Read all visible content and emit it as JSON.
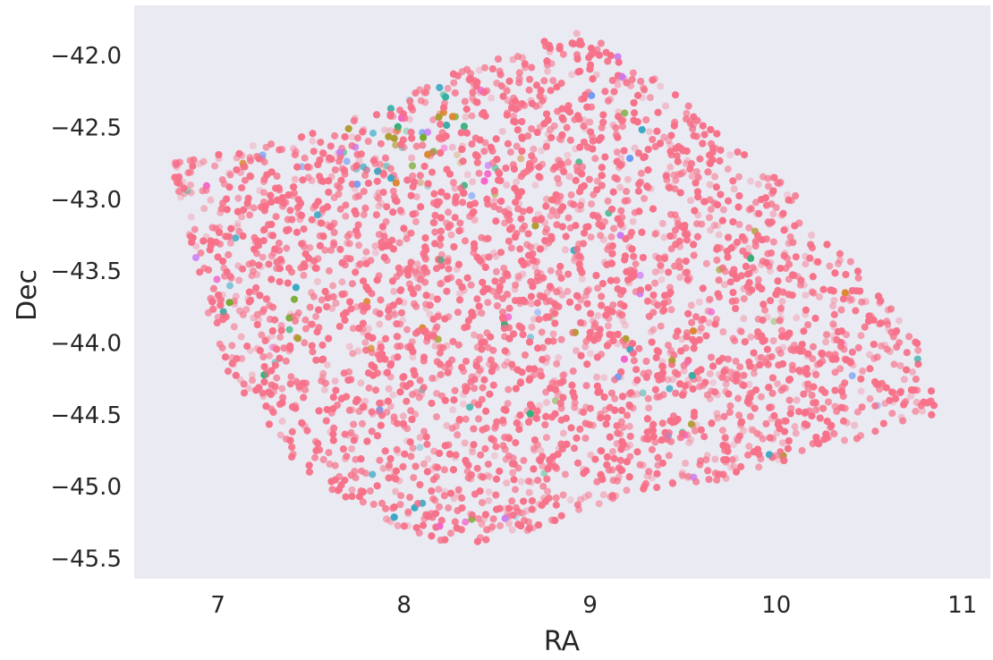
{
  "chart_data": {
    "type": "scatter",
    "title": "",
    "xlabel": "RA",
    "ylabel": "Dec",
    "xlim": [
      6.55,
      11.15
    ],
    "ylim": [
      -45.64,
      -41.65
    ],
    "xticks": [
      7,
      8,
      9,
      10,
      11
    ],
    "xtick_labels": [
      "7",
      "8",
      "9",
      "10",
      "11"
    ],
    "yticks": [
      -42.0,
      -42.5,
      -43.0,
      -43.5,
      -44.0,
      -44.5,
      -45.0,
      -45.5
    ],
    "ytick_labels": [
      "−42.0",
      "−42.5",
      "−43.0",
      "−43.5",
      "−44.0",
      "−44.5",
      "−45.0",
      "−45.5"
    ],
    "grid": false,
    "legend": "none",
    "footprint_outline": [
      [
        6.75,
        -42.75
      ],
      [
        6.85,
        -42.72
      ],
      [
        7.45,
        -42.55
      ],
      [
        7.85,
        -42.38
      ],
      [
        8.25,
        -42.12
      ],
      [
        8.55,
        -42.0
      ],
      [
        8.9,
        -41.83
      ],
      [
        9.05,
        -41.9
      ],
      [
        9.4,
        -42.18
      ],
      [
        9.7,
        -42.55
      ],
      [
        10.05,
        -42.88
      ],
      [
        10.45,
        -43.5
      ],
      [
        10.75,
        -43.95
      ],
      [
        10.88,
        -44.5
      ],
      [
        10.7,
        -44.58
      ],
      [
        10.2,
        -44.75
      ],
      [
        9.75,
        -44.95
      ],
      [
        9.2,
        -45.05
      ],
      [
        8.7,
        -45.3
      ],
      [
        8.3,
        -45.43
      ],
      [
        8.0,
        -45.3
      ],
      [
        7.45,
        -44.9
      ],
      [
        7.0,
        -44.1
      ],
      [
        6.75,
        -42.75
      ]
    ],
    "dominant_color": "#f77189",
    "palette": [
      "#f77189",
      "#dc8932",
      "#ae9d31",
      "#77ab31",
      "#33b07a",
      "#36ada4",
      "#38a9c5",
      "#6e9bf4",
      "#cc7af4",
      "#f565cc"
    ],
    "point_count_estimate": 9000,
    "background_color": "#eaeaf2"
  }
}
